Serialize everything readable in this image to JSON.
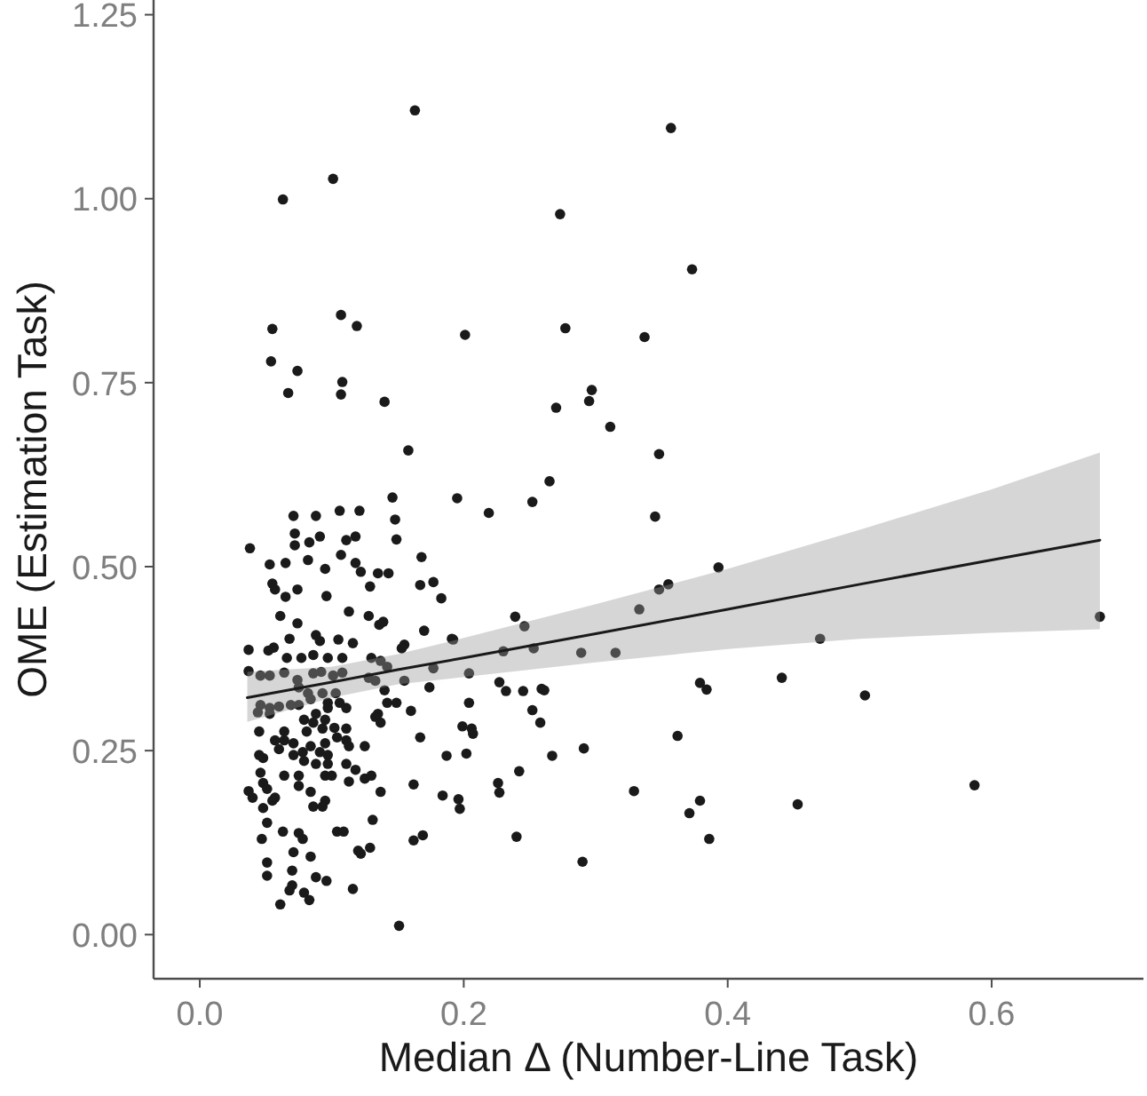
{
  "chart_data": {
    "type": "scatter",
    "xlabel": "Median Δ (Number-Line Task)",
    "ylabel": "OME (Estimation Task)",
    "xlim": [
      -0.035,
      0.715
    ],
    "ylim": [
      -0.06,
      1.27
    ],
    "xticks": [
      {
        "value": 0,
        "label": "0.0"
      },
      {
        "value": 0.2,
        "label": "0.2"
      },
      {
        "value": 0.4,
        "label": "0.4"
      },
      {
        "value": 0.6,
        "label": "0.6"
      }
    ],
    "yticks": [
      {
        "value": 0,
        "label": "0.00"
      },
      {
        "value": 0.25,
        "label": "0.25"
      },
      {
        "value": 0.5,
        "label": "0.50"
      },
      {
        "value": 0.75,
        "label": "0.75"
      },
      {
        "value": 1,
        "label": "1.00"
      },
      {
        "value": 1.25,
        "label": "1.25"
      }
    ],
    "grid": false,
    "marker": "circle",
    "series": [
      {
        "color": "#1a1a1a",
        "x": [
          0.163,
          0.357,
          0.101,
          0.063,
          0.273,
          0.373,
          0.055,
          0.107,
          0.119,
          0.201,
          0.277,
          0.337,
          0.054,
          0.074,
          0.067,
          0.108,
          0.107,
          0.14,
          0.27,
          0.297,
          0.295,
          0.311,
          0.158,
          0.348,
          0.265,
          0.195,
          0.252,
          0.219,
          0.345,
          0.393,
          0.47,
          0.504,
          0.441,
          0.587,
          0.682,
          0.453,
          0.333,
          0.348,
          0.355,
          0.315,
          0.289,
          0.253,
          0.246,
          0.239,
          0.23,
          0.204,
          0.191,
          0.379,
          0.384,
          0.362,
          0.329,
          0.379,
          0.371,
          0.386,
          0.291,
          0.29,
          0.267,
          0.259,
          0.261,
          0.245,
          0.252,
          0.258,
          0.232,
          0.227,
          0.242,
          0.226,
          0.227,
          0.24,
          0.204,
          0.206,
          0.207,
          0.199,
          0.202,
          0.187,
          0.184,
          0.196,
          0.197,
          0.038,
          0.071,
          0.088,
          0.106,
          0.121,
          0.146,
          0.148,
          0.149,
          0.072,
          0.083,
          0.072,
          0.091,
          0.111,
          0.118,
          0.107,
          0.053,
          0.065,
          0.082,
          0.095,
          0.118,
          0.122,
          0.135,
          0.143,
          0.168,
          0.129,
          0.167,
          0.177,
          0.183,
          0.055,
          0.057,
          0.074,
          0.065,
          0.096,
          0.113,
          0.128,
          0.136,
          0.139,
          0.061,
          0.074,
          0.17,
          0.192,
          0.068,
          0.088,
          0.091,
          0.105,
          0.116,
          0.155,
          0.153,
          0.037,
          0.052,
          0.056,
          0.066,
          0.077,
          0.086,
          0.097,
          0.108,
          0.13,
          0.137,
          0.142,
          0.037,
          0.046,
          0.053,
          0.064,
          0.074,
          0.086,
          0.092,
          0.101,
          0.108,
          0.128,
          0.133,
          0.155,
          0.177,
          0.075,
          0.082,
          0.084,
          0.093,
          0.103,
          0.14,
          0.174,
          0.046,
          0.053,
          0.06,
          0.069,
          0.075,
          0.097,
          0.106,
          0.142,
          0.149,
          0.044,
          0.053,
          0.088,
          0.097,
          0.111,
          0.135,
          0.16,
          0.079,
          0.095,
          0.086,
          0.133,
          0.137,
          0.045,
          0.064,
          0.081,
          0.093,
          0.102,
          0.111,
          0.167,
          0.064,
          0.057,
          0.071,
          0.084,
          0.095,
          0.111,
          0.104,
          0.06,
          0.078,
          0.091,
          0.097,
          0.113,
          0.125,
          0.045,
          0.048,
          0.071,
          0.079,
          0.088,
          0.097,
          0.046,
          0.111,
          0.118,
          0.064,
          0.075,
          0.095,
          0.1,
          0.113,
          0.125,
          0.13,
          0.162,
          0.037,
          0.04,
          0.048,
          0.051,
          0.057,
          0.075,
          0.084,
          0.137,
          0.055,
          0.048,
          0.086,
          0.095,
          0.093,
          0.051,
          0.047,
          0.063,
          0.075,
          0.078,
          0.084,
          0.071,
          0.104,
          0.109,
          0.131,
          0.12,
          0.122,
          0.129,
          0.162,
          0.169,
          0.051,
          0.07,
          0.051,
          0.088,
          0.096,
          0.07,
          0.116,
          0.068,
          0.079,
          0.083,
          0.061,
          0.151
        ],
        "values": [
          1.12,
          1.096,
          1.027,
          0.999,
          0.979,
          0.904,
          0.823,
          0.842,
          0.827,
          0.815,
          0.824,
          0.812,
          0.779,
          0.766,
          0.736,
          0.751,
          0.734,
          0.724,
          0.716,
          0.74,
          0.725,
          0.69,
          0.658,
          0.653,
          0.616,
          0.593,
          0.588,
          0.573,
          0.568,
          0.499,
          0.402,
          0.325,
          0.349,
          0.203,
          0.432,
          0.177,
          0.442,
          0.469,
          0.476,
          0.383,
          0.383,
          0.389,
          0.419,
          0.432,
          0.385,
          0.355,
          0.402,
          0.342,
          0.333,
          0.27,
          0.195,
          0.182,
          0.165,
          0.13,
          0.253,
          0.099,
          0.243,
          0.334,
          0.332,
          0.331,
          0.305,
          0.288,
          0.331,
          0.343,
          0.222,
          0.206,
          0.193,
          0.133,
          0.315,
          0.28,
          0.273,
          0.283,
          0.246,
          0.243,
          0.189,
          0.184,
          0.171,
          0.525,
          0.569,
          0.569,
          0.576,
          0.576,
          0.594,
          0.564,
          0.537,
          0.545,
          0.533,
          0.529,
          0.541,
          0.536,
          0.541,
          0.516,
          0.503,
          0.505,
          0.509,
          0.497,
          0.505,
          0.493,
          0.491,
          0.491,
          0.513,
          0.473,
          0.475,
          0.479,
          0.457,
          0.477,
          0.469,
          0.469,
          0.459,
          0.46,
          0.439,
          0.433,
          0.421,
          0.425,
          0.433,
          0.423,
          0.413,
          0.401,
          0.402,
          0.407,
          0.399,
          0.401,
          0.396,
          0.394,
          0.389,
          0.387,
          0.386,
          0.39,
          0.376,
          0.376,
          0.38,
          0.376,
          0.376,
          0.376,
          0.372,
          0.364,
          0.358,
          0.352,
          0.352,
          0.356,
          0.346,
          0.355,
          0.357,
          0.352,
          0.356,
          0.349,
          0.345,
          0.345,
          0.362,
          0.336,
          0.328,
          0.32,
          0.328,
          0.328,
          0.332,
          0.336,
          0.312,
          0.308,
          0.31,
          0.312,
          0.312,
          0.315,
          0.315,
          0.315,
          0.315,
          0.302,
          0.3,
          0.3,
          0.308,
          0.308,
          0.3,
          0.304,
          0.292,
          0.292,
          0.288,
          0.296,
          0.288,
          0.276,
          0.276,
          0.276,
          0.28,
          0.281,
          0.28,
          0.268,
          0.264,
          0.264,
          0.26,
          0.256,
          0.26,
          0.264,
          0.268,
          0.252,
          0.248,
          0.248,
          0.244,
          0.256,
          0.256,
          0.244,
          0.24,
          0.244,
          0.236,
          0.232,
          0.232,
          0.22,
          0.232,
          0.224,
          0.216,
          0.216,
          0.216,
          0.216,
          0.208,
          0.212,
          0.216,
          0.204,
          0.195,
          0.186,
          0.206,
          0.198,
          0.186,
          0.202,
          0.194,
          0.194,
          0.182,
          0.172,
          0.174,
          0.182,
          0.174,
          0.152,
          0.13,
          0.14,
          0.138,
          0.13,
          0.106,
          0.112,
          0.14,
          0.14,
          0.156,
          0.114,
          0.11,
          0.118,
          0.128,
          0.135,
          0.098,
          0.087,
          0.08,
          0.078,
          0.073,
          0.067,
          0.062,
          0.06,
          0.057,
          0.047,
          0.041,
          0.012
        ]
      },
      {
        "type": "line",
        "color": "#1a1a1a",
        "marker": "none",
        "line_style": "solid",
        "x": [
          0.036,
          0.1,
          0.15,
          0.2,
          0.3,
          0.4,
          0.5,
          0.6,
          0.682
        ],
        "values": [
          0.322,
          0.343,
          0.36,
          0.376,
          0.409,
          0.442,
          0.476,
          0.509,
          0.536
        ],
        "lower": [
          0.289,
          0.322,
          0.34,
          0.35,
          0.37,
          0.388,
          0.402,
          0.41,
          0.415
        ],
        "upper": [
          0.357,
          0.364,
          0.381,
          0.403,
          0.449,
          0.497,
          0.55,
          0.605,
          0.655
        ]
      }
    ]
  }
}
